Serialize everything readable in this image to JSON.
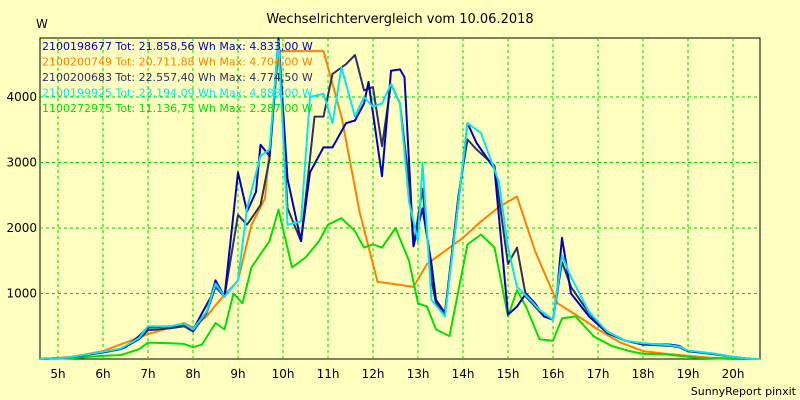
{
  "chart_data": {
    "type": "line",
    "title": "Wechselrichtervergleich vom 10.06.2018",
    "ylabel": "W",
    "xlabel": "",
    "footer": "SunnyReport pinxit",
    "xlim": [
      4.6,
      20.6
    ],
    "ylim": [
      0,
      4900
    ],
    "x_ticks": [
      5,
      6,
      7,
      8,
      9,
      10,
      11,
      12,
      13,
      14,
      15,
      16,
      17,
      18,
      19,
      20
    ],
    "x_tick_labels": [
      "5h",
      "6h",
      "7h",
      "8h",
      "9h",
      "10h",
      "11h",
      "12h",
      "13h",
      "14h",
      "15h",
      "16h",
      "17h",
      "18h",
      "19h",
      "20h"
    ],
    "y_ticks": [
      1000,
      2000,
      3000,
      4000
    ],
    "y_tick_labels": [
      "1000",
      "2000",
      "3000",
      "4000"
    ],
    "grid": true,
    "legend_position": "top-left",
    "series": [
      {
        "name": "2100198677 Tot: 21.858,56 Wh Max: 4.833,00 W",
        "color": "#0000c0",
        "points": [
          [
            4.6,
            0
          ],
          [
            5.2,
            20
          ],
          [
            6.0,
            100
          ],
          [
            6.3,
            140
          ],
          [
            6.5,
            180
          ],
          [
            6.8,
            350
          ],
          [
            7.0,
            480
          ],
          [
            7.5,
            500
          ],
          [
            7.8,
            530
          ],
          [
            8.0,
            440
          ],
          [
            8.2,
            700
          ],
          [
            8.4,
            950
          ],
          [
            8.5,
            1200
          ],
          [
            8.7,
            950
          ],
          [
            9.0,
            2850
          ],
          [
            9.2,
            2250
          ],
          [
            9.4,
            2550
          ],
          [
            9.5,
            3270
          ],
          [
            9.7,
            3100
          ],
          [
            9.9,
            4900
          ],
          [
            10.1,
            2750
          ],
          [
            10.4,
            1800
          ],
          [
            10.6,
            2850
          ],
          [
            10.9,
            3230
          ],
          [
            11.1,
            3230
          ],
          [
            11.4,
            3600
          ],
          [
            11.6,
            3640
          ],
          [
            11.8,
            3900
          ],
          [
            11.9,
            4230
          ],
          [
            12.2,
            2790
          ],
          [
            12.4,
            4400
          ],
          [
            12.6,
            4420
          ],
          [
            12.7,
            4300
          ],
          [
            12.9,
            1720
          ],
          [
            13.1,
            2300
          ],
          [
            13.3,
            1450
          ],
          [
            13.4,
            900
          ],
          [
            13.6,
            700
          ],
          [
            13.9,
            2400
          ],
          [
            14.1,
            3600
          ],
          [
            14.3,
            3300
          ],
          [
            14.7,
            2900
          ],
          [
            15.0,
            680
          ],
          [
            15.2,
            800
          ],
          [
            15.4,
            1000
          ],
          [
            15.6,
            850
          ],
          [
            15.8,
            650
          ],
          [
            16.0,
            600
          ],
          [
            16.1,
            1100
          ],
          [
            16.2,
            1850
          ],
          [
            16.4,
            1000
          ],
          [
            16.8,
            650
          ],
          [
            17.2,
            400
          ],
          [
            17.6,
            280
          ],
          [
            18.0,
            230
          ],
          [
            18.6,
            220
          ],
          [
            18.8,
            200
          ],
          [
            19.0,
            120
          ],
          [
            19.6,
            80
          ],
          [
            20.0,
            30
          ],
          [
            20.4,
            0
          ],
          [
            20.6,
            0
          ]
        ]
      },
      {
        "name": "2100200749 Tot: 20.711,88 Wh Max: 4.704,00 W",
        "color": "#ff8000",
        "points": [
          [
            4.6,
            0
          ],
          [
            5.3,
            30
          ],
          [
            6.0,
            120
          ],
          [
            6.5,
            250
          ],
          [
            7.0,
            380
          ],
          [
            7.5,
            480
          ],
          [
            7.8,
            550
          ],
          [
            8.0,
            480
          ],
          [
            8.3,
            650
          ],
          [
            8.6,
            900
          ],
          [
            9.0,
            1200
          ],
          [
            9.3,
            2050
          ],
          [
            9.6,
            2450
          ],
          [
            9.9,
            4700
          ],
          [
            10.2,
            4700
          ],
          [
            10.6,
            4700
          ],
          [
            10.9,
            4700
          ],
          [
            11.0,
            4450
          ],
          [
            11.3,
            3700
          ],
          [
            11.7,
            2250
          ],
          [
            12.1,
            1180
          ],
          [
            12.5,
            1140
          ],
          [
            12.9,
            1100
          ],
          [
            13.2,
            1450
          ],
          [
            13.6,
            1650
          ],
          [
            14.0,
            1850
          ],
          [
            14.4,
            2100
          ],
          [
            14.8,
            2320
          ],
          [
            15.2,
            2480
          ],
          [
            15.6,
            1650
          ],
          [
            16.1,
            850
          ],
          [
            16.5,
            680
          ],
          [
            17.0,
            450
          ],
          [
            17.5,
            250
          ],
          [
            18.0,
            120
          ],
          [
            18.5,
            80
          ],
          [
            19.0,
            50
          ],
          [
            19.5,
            20
          ],
          [
            20.6,
            0
          ]
        ]
      },
      {
        "name": "2100200683 Tot: 22.557,40 Wh Max: 4.774,50 W",
        "color": "#303060",
        "points": [
          [
            4.6,
            0
          ],
          [
            5.2,
            20
          ],
          [
            6.0,
            100
          ],
          [
            6.4,
            150
          ],
          [
            6.8,
            300
          ],
          [
            7.0,
            440
          ],
          [
            7.5,
            470
          ],
          [
            7.8,
            500
          ],
          [
            8.0,
            420
          ],
          [
            8.3,
            700
          ],
          [
            8.5,
            1100
          ],
          [
            8.7,
            950
          ],
          [
            9.0,
            2200
          ],
          [
            9.2,
            2050
          ],
          [
            9.5,
            2350
          ],
          [
            9.7,
            3050
          ],
          [
            9.9,
            4780
          ],
          [
            10.1,
            2300
          ],
          [
            10.4,
            1800
          ],
          [
            10.7,
            3700
          ],
          [
            10.9,
            3700
          ],
          [
            11.1,
            4350
          ],
          [
            11.4,
            4500
          ],
          [
            11.6,
            4640
          ],
          [
            11.8,
            4100
          ],
          [
            12.0,
            4150
          ],
          [
            12.2,
            3250
          ],
          [
            12.4,
            4200
          ],
          [
            12.6,
            3900
          ],
          [
            12.8,
            2700
          ],
          [
            12.9,
            1720
          ],
          [
            13.1,
            2600
          ],
          [
            13.3,
            1200
          ],
          [
            13.4,
            850
          ],
          [
            13.6,
            700
          ],
          [
            13.9,
            2500
          ],
          [
            14.1,
            3350
          ],
          [
            14.3,
            3200
          ],
          [
            14.7,
            2950
          ],
          [
            15.0,
            1450
          ],
          [
            15.2,
            1700
          ],
          [
            15.4,
            950
          ],
          [
            15.6,
            800
          ],
          [
            15.8,
            650
          ],
          [
            16.0,
            600
          ],
          [
            16.2,
            1480
          ],
          [
            16.4,
            1100
          ],
          [
            16.8,
            700
          ],
          [
            17.2,
            420
          ],
          [
            17.6,
            280
          ],
          [
            18.0,
            220
          ],
          [
            18.6,
            200
          ],
          [
            18.8,
            180
          ],
          [
            19.0,
            120
          ],
          [
            19.6,
            70
          ],
          [
            20.0,
            30
          ],
          [
            20.4,
            0
          ],
          [
            20.6,
            0
          ]
        ]
      },
      {
        "name": "2100199925 Tot: 23.194,09 Wh Max: 4.888,00 W",
        "color": "#00e8f0",
        "points": [
          [
            4.6,
            0
          ],
          [
            5.2,
            20
          ],
          [
            6.0,
            110
          ],
          [
            6.4,
            160
          ],
          [
            6.8,
            320
          ],
          [
            7.0,
            500
          ],
          [
            7.5,
            500
          ],
          [
            7.8,
            540
          ],
          [
            8.0,
            450
          ],
          [
            8.3,
            720
          ],
          [
            8.5,
            1150
          ],
          [
            8.7,
            950
          ],
          [
            9.0,
            1200
          ],
          [
            9.2,
            2300
          ],
          [
            9.5,
            3100
          ],
          [
            9.7,
            3200
          ],
          [
            9.9,
            4850
          ],
          [
            10.1,
            2050
          ],
          [
            10.4,
            2100
          ],
          [
            10.6,
            4000
          ],
          [
            10.9,
            4050
          ],
          [
            11.1,
            3600
          ],
          [
            11.3,
            4450
          ],
          [
            11.6,
            3700
          ],
          [
            11.8,
            4000
          ],
          [
            12.0,
            3850
          ],
          [
            12.2,
            3900
          ],
          [
            12.4,
            4200
          ],
          [
            12.6,
            3900
          ],
          [
            12.8,
            2400
          ],
          [
            13.0,
            1800
          ],
          [
            13.1,
            3000
          ],
          [
            13.3,
            900
          ],
          [
            13.6,
            650
          ],
          [
            13.9,
            2400
          ],
          [
            14.1,
            3600
          ],
          [
            14.4,
            3450
          ],
          [
            14.8,
            2700
          ],
          [
            15.0,
            1700
          ],
          [
            15.2,
            1100
          ],
          [
            15.5,
            900
          ],
          [
            15.7,
            750
          ],
          [
            16.0,
            600
          ],
          [
            16.2,
            1580
          ],
          [
            16.4,
            1250
          ],
          [
            16.8,
            720
          ],
          [
            17.2,
            420
          ],
          [
            17.6,
            280
          ],
          [
            18.0,
            240
          ],
          [
            18.6,
            210
          ],
          [
            18.8,
            190
          ],
          [
            19.0,
            130
          ],
          [
            19.6,
            80
          ],
          [
            20.0,
            30
          ],
          [
            20.4,
            0
          ],
          [
            20.6,
            0
          ]
        ]
      },
      {
        "name": "1100272975 Tot: 11.136,75 Wh Max: 2.287,00 W",
        "color": "#00e000",
        "points": [
          [
            4.6,
            0
          ],
          [
            5.3,
            10
          ],
          [
            6.0,
            50
          ],
          [
            6.4,
            60
          ],
          [
            6.8,
            150
          ],
          [
            7.0,
            250
          ],
          [
            7.5,
            240
          ],
          [
            7.8,
            230
          ],
          [
            8.0,
            180
          ],
          [
            8.2,
            220
          ],
          [
            8.5,
            550
          ],
          [
            8.7,
            450
          ],
          [
            8.9,
            1000
          ],
          [
            9.1,
            850
          ],
          [
            9.3,
            1400
          ],
          [
            9.5,
            1600
          ],
          [
            9.7,
            1800
          ],
          [
            9.9,
            2280
          ],
          [
            10.2,
            1400
          ],
          [
            10.5,
            1550
          ],
          [
            10.8,
            1800
          ],
          [
            11.0,
            2050
          ],
          [
            11.3,
            2150
          ],
          [
            11.6,
            1950
          ],
          [
            11.8,
            1700
          ],
          [
            12.0,
            1750
          ],
          [
            12.2,
            1700
          ],
          [
            12.5,
            2000
          ],
          [
            12.8,
            1500
          ],
          [
            13.0,
            850
          ],
          [
            13.2,
            800
          ],
          [
            13.4,
            450
          ],
          [
            13.7,
            350
          ],
          [
            14.1,
            1750
          ],
          [
            14.4,
            1900
          ],
          [
            14.7,
            1700
          ],
          [
            15.0,
            650
          ],
          [
            15.2,
            1050
          ],
          [
            15.4,
            800
          ],
          [
            15.7,
            300
          ],
          [
            16.0,
            280
          ],
          [
            16.2,
            620
          ],
          [
            16.5,
            650
          ],
          [
            16.9,
            350
          ],
          [
            17.3,
            200
          ],
          [
            17.7,
            120
          ],
          [
            18.0,
            80
          ],
          [
            18.5,
            70
          ],
          [
            18.8,
            50
          ],
          [
            19.2,
            20
          ],
          [
            20.0,
            0
          ],
          [
            20.6,
            0
          ]
        ]
      }
    ]
  }
}
